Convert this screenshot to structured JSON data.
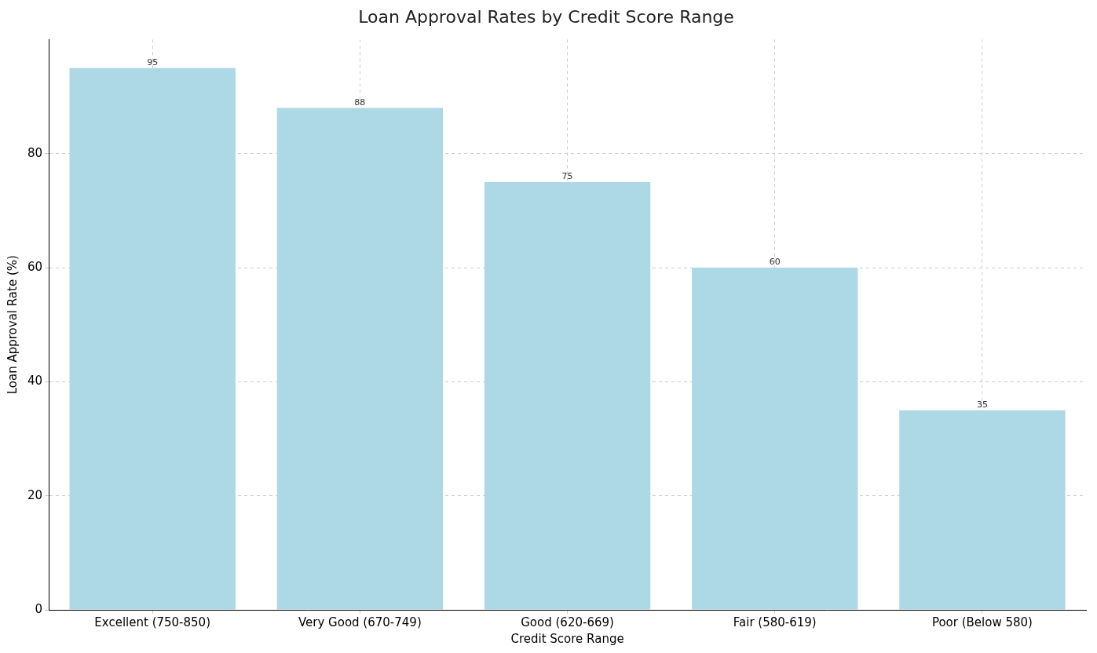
{
  "chart_data": {
    "type": "bar",
    "title": "Loan Approval Rates by Credit Score Range",
    "x_label": "Credit Score Range",
    "y_label": "Loan Approval Rate (%)",
    "categories": [
      "Excellent (750-850)",
      "Very Good (670-749)",
      "Good (620-669)",
      "Fair (580-619)",
      "Poor (Below 580)"
    ],
    "values": [
      95,
      88,
      75,
      60,
      35
    ],
    "color": "#add8e6",
    "ylim": [
      0,
      100
    ],
    "yticks": [
      0,
      20,
      40,
      60,
      80
    ],
    "grid": true,
    "data_labels": true
  }
}
